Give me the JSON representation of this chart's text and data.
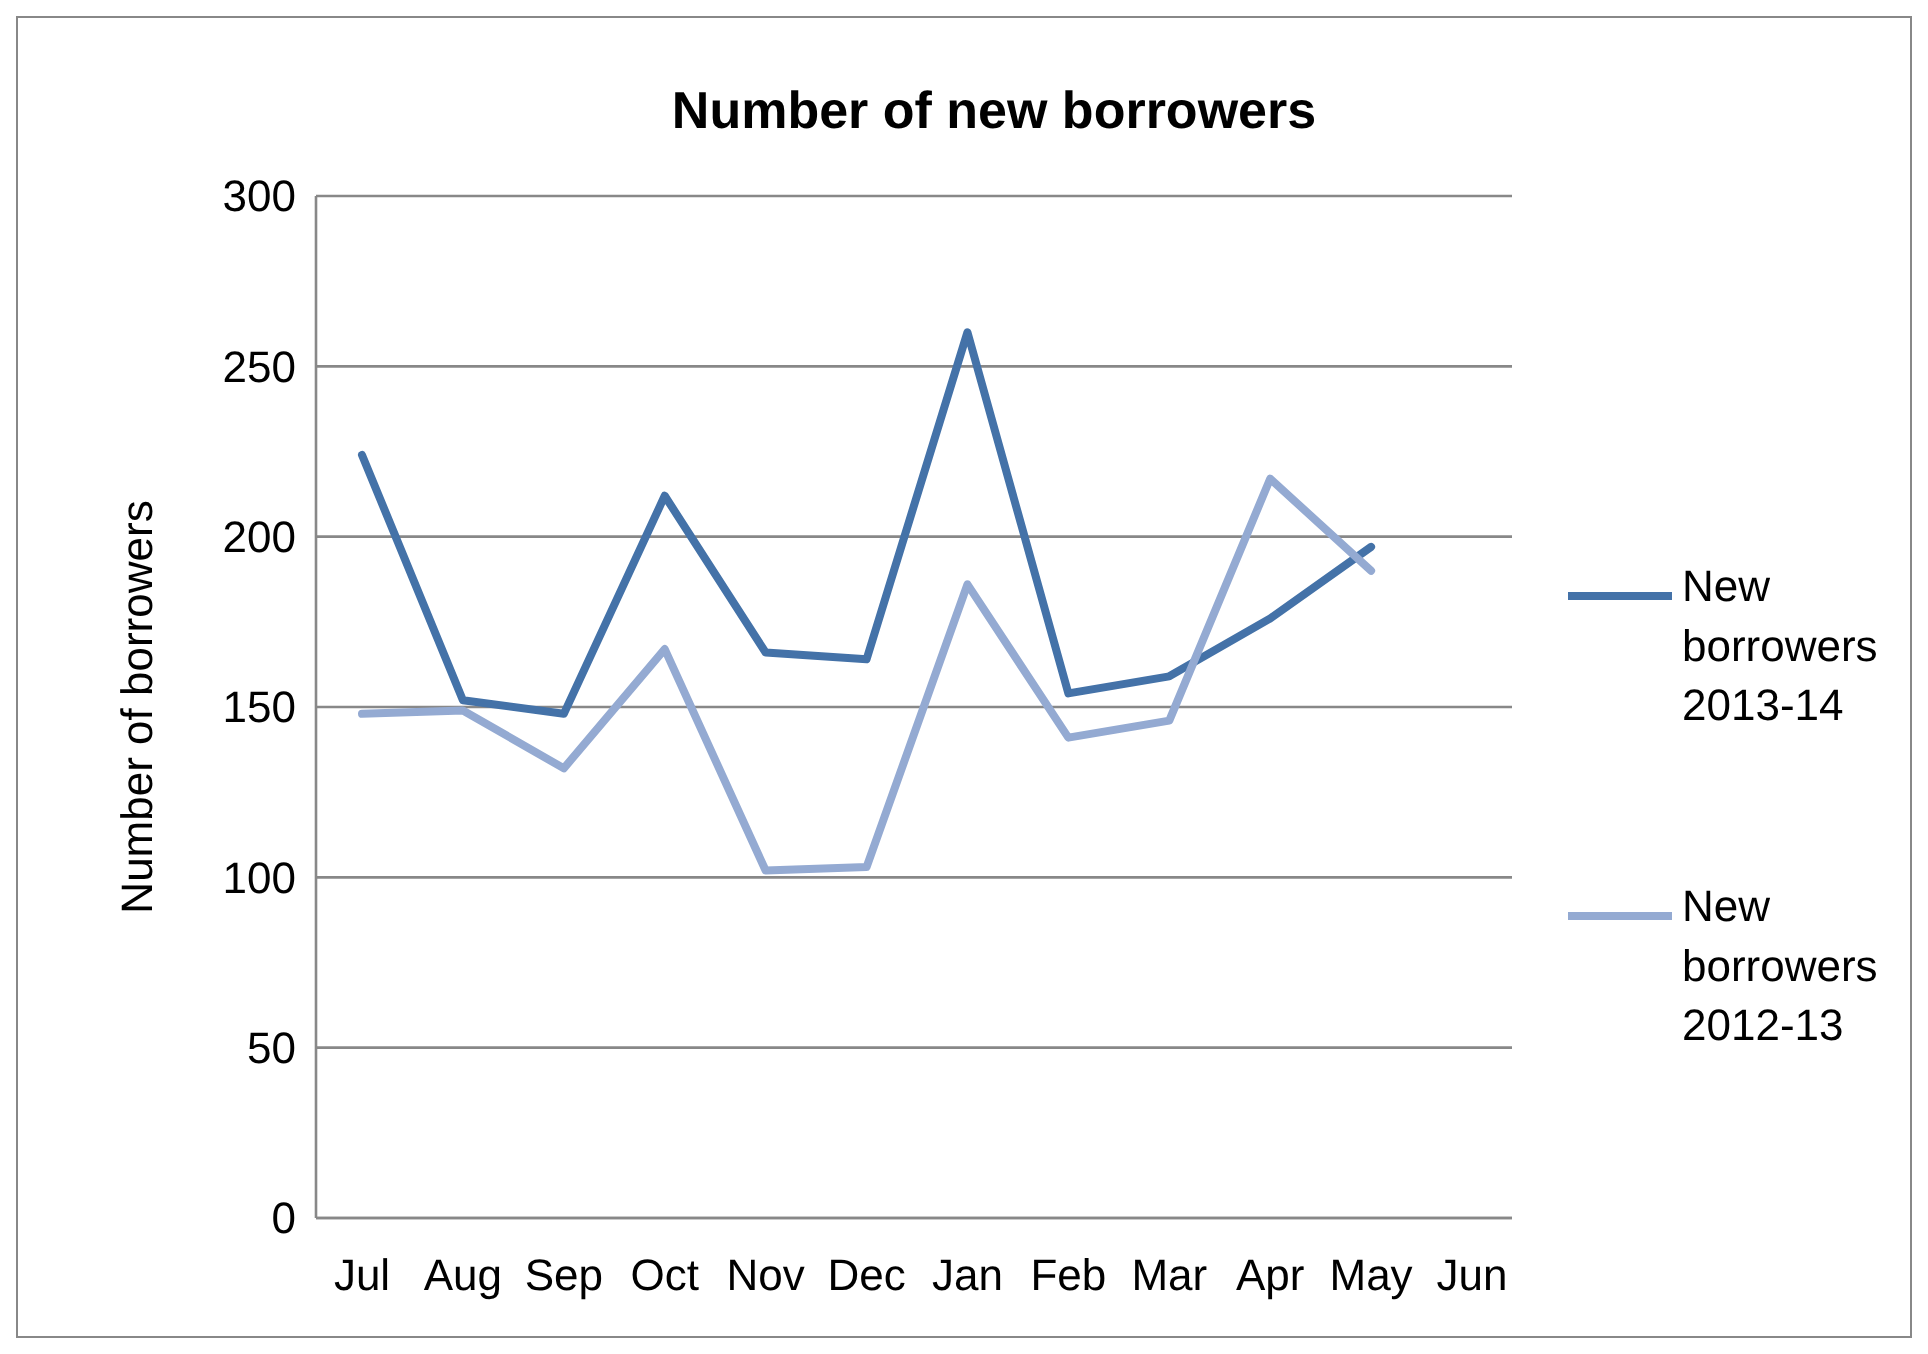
{
  "chart_data": {
    "type": "line",
    "title": "Number of new borrowers",
    "ylabel": "Number of borrowers",
    "categories": [
      "Jul",
      "Aug",
      "Sep",
      "Oct",
      "Nov",
      "Dec",
      "Jan",
      "Feb",
      "Mar",
      "Apr",
      "May",
      "Jun"
    ],
    "series": [
      {
        "name": "New borrowers 2013-14",
        "color": "#4472a8",
        "values": [
          224,
          152,
          148,
          212,
          166,
          164,
          260,
          154,
          159,
          176,
          197,
          null
        ]
      },
      {
        "name": "New borrowers 2012-13",
        "color": "#94aad2",
        "values": [
          148,
          149,
          132,
          167,
          102,
          103,
          186,
          141,
          146,
          217,
          190,
          null
        ]
      }
    ],
    "ylim": [
      0,
      300
    ],
    "yticks": [
      0,
      50,
      100,
      150,
      200,
      250,
      300
    ],
    "grid": "y",
    "legend": "right",
    "marker": "none",
    "line_style": "solid"
  }
}
